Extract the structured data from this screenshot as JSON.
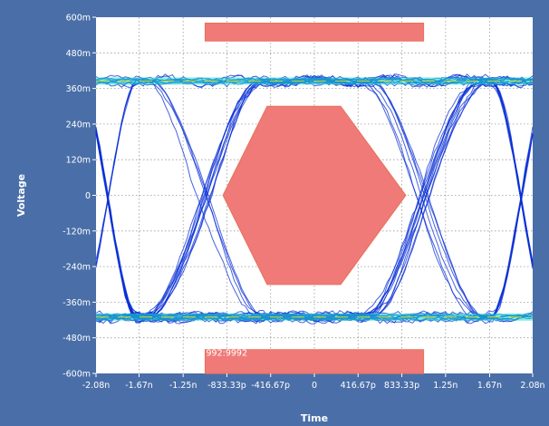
{
  "chart_data": {
    "type": "eye-diagram",
    "xlabel": "Time",
    "ylabel": "Voltage",
    "xlim": [
      -2.08,
      2.08
    ],
    "xunit": "ns",
    "ylim": [
      -600,
      600
    ],
    "yunit": "mV",
    "x_ticks": [
      {
        "value": -2.08,
        "label": "-2.08n"
      },
      {
        "value": -1.67,
        "label": "-1.67n"
      },
      {
        "value": -1.25,
        "label": "-1.25n"
      },
      {
        "value": -0.83333,
        "label": "-833.33p"
      },
      {
        "value": -0.41667,
        "label": "-416.67p"
      },
      {
        "value": 0,
        "label": "0"
      },
      {
        "value": 0.41667,
        "label": "416.67p"
      },
      {
        "value": 0.83333,
        "label": "833.33p"
      },
      {
        "value": 1.25,
        "label": "1.25n"
      },
      {
        "value": 1.67,
        "label": "1.67n"
      },
      {
        "value": 2.08,
        "label": "2.08n"
      }
    ],
    "y_ticks": [
      {
        "value": 600,
        "label": "600m"
      },
      {
        "value": 480,
        "label": "480m"
      },
      {
        "value": 360,
        "label": "360m"
      },
      {
        "value": 240,
        "label": "240m"
      },
      {
        "value": 120,
        "label": "120m"
      },
      {
        "value": 0,
        "label": "0"
      },
      {
        "value": -120,
        "label": "-120m"
      },
      {
        "value": -240,
        "label": "-240m"
      },
      {
        "value": -360,
        "label": "-360m"
      },
      {
        "value": -480,
        "label": "-480m"
      },
      {
        "value": -600,
        "label": "-600m"
      }
    ],
    "grid": true,
    "eye": {
      "high_level": 385,
      "low_level": -410,
      "crossings": [
        -2.08,
        -1.04,
        1.04,
        2.08
      ],
      "unit_interval": 2.08,
      "jitter": 0.06,
      "noise": 22,
      "trace_count": 40
    },
    "masks": [
      {
        "name": "top-mask",
        "points": [
          [
            -1.04,
            580
          ],
          [
            1.04,
            580
          ],
          [
            1.04,
            520
          ],
          [
            -1.04,
            520
          ]
        ]
      },
      {
        "name": "center-mask",
        "points": [
          [
            -0.87,
            0
          ],
          [
            -0.45,
            300
          ],
          [
            0.25,
            300
          ],
          [
            0.87,
            0
          ],
          [
            0.25,
            -300
          ],
          [
            -0.45,
            -300
          ]
        ]
      },
      {
        "name": "bottom-mask",
        "points": [
          [
            -1.04,
            -520
          ],
          [
            1.04,
            -520
          ],
          [
            1.04,
            -600
          ],
          [
            -1.04,
            -600
          ]
        ]
      }
    ],
    "mask_label": "992:9992",
    "colors": {
      "background": "#4a6fa8",
      "plot": "#ffffff",
      "grid": "#9a9a9a",
      "trace": "#0a2fd6",
      "trace_dense": "#22e0c8",
      "trace_hot": "#f0e020",
      "mask_fill": "#f07a78",
      "mask_stroke": "#e87460"
    }
  }
}
